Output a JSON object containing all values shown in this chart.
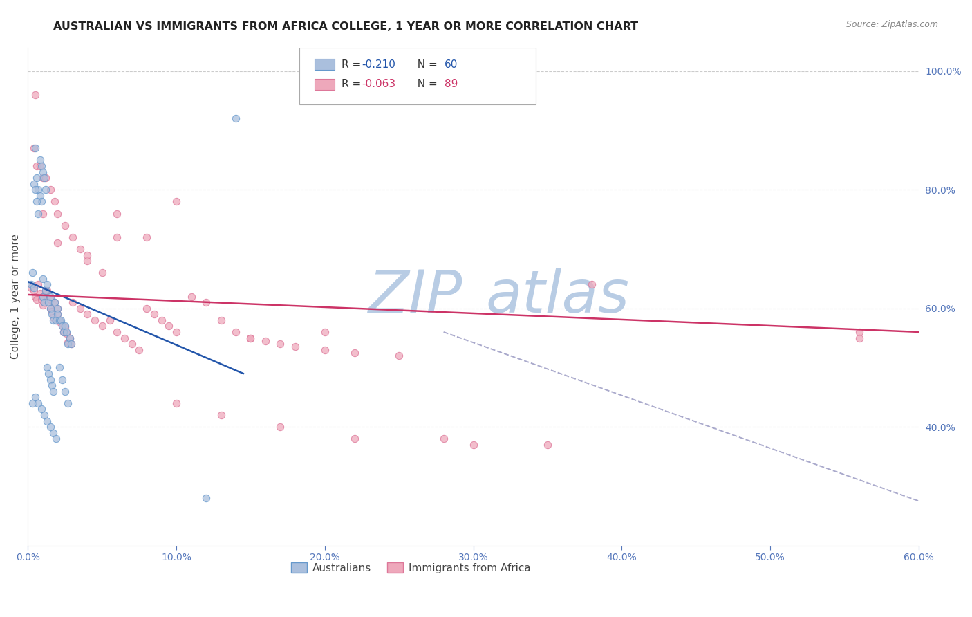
{
  "title": "AUSTRALIAN VS IMMIGRANTS FROM AFRICA COLLEGE, 1 YEAR OR MORE CORRELATION CHART",
  "source": "Source: ZipAtlas.com",
  "ylabel": "College, 1 year or more",
  "xlim": [
    0.0,
    0.6
  ],
  "ylim": [
    0.2,
    1.04
  ],
  "yticks": [
    0.4,
    0.6,
    0.8,
    1.0
  ],
  "ytick_labels": [
    "40.0%",
    "60.0%",
    "80.0%",
    "100.0%"
  ],
  "xticks": [
    0.0,
    0.1,
    0.2,
    0.3,
    0.4,
    0.5,
    0.6
  ],
  "xtick_labels": [
    "0.0%",
    "10.0%",
    "20.0%",
    "30.0%",
    "40.0%",
    "50.0%",
    "60.0%"
  ],
  "grid_color": "#cccccc",
  "background_color": "#ffffff",
  "watermark_zip_color": "#b8cce4",
  "watermark_atlas_color": "#b8cce4",
  "series": [
    {
      "label": "Australians",
      "R": -0.21,
      "N": 60,
      "edge_color": "#6699cc",
      "face_color": "#aabfdd",
      "marker_size": 55,
      "x": [
        0.002,
        0.004,
        0.005,
        0.006,
        0.007,
        0.008,
        0.009,
        0.01,
        0.01,
        0.011,
        0.012,
        0.013,
        0.014,
        0.015,
        0.015,
        0.016,
        0.017,
        0.018,
        0.019,
        0.02,
        0.02,
        0.021,
        0.022,
        0.023,
        0.024,
        0.025,
        0.026,
        0.027,
        0.028,
        0.029,
        0.003,
        0.004,
        0.005,
        0.006,
        0.007,
        0.008,
        0.009,
        0.01,
        0.011,
        0.012,
        0.013,
        0.014,
        0.015,
        0.016,
        0.017,
        0.003,
        0.005,
        0.007,
        0.009,
        0.011,
        0.013,
        0.015,
        0.017,
        0.019,
        0.021,
        0.023,
        0.025,
        0.027,
        0.12,
        0.14
      ],
      "y": [
        0.64,
        0.635,
        0.87,
        0.82,
        0.8,
        0.79,
        0.78,
        0.65,
        0.62,
        0.61,
        0.63,
        0.64,
        0.61,
        0.6,
        0.62,
        0.59,
        0.58,
        0.61,
        0.58,
        0.6,
        0.59,
        0.58,
        0.58,
        0.57,
        0.56,
        0.57,
        0.56,
        0.54,
        0.55,
        0.54,
        0.66,
        0.81,
        0.8,
        0.78,
        0.76,
        0.85,
        0.84,
        0.83,
        0.82,
        0.8,
        0.5,
        0.49,
        0.48,
        0.47,
        0.46,
        0.44,
        0.45,
        0.44,
        0.43,
        0.42,
        0.41,
        0.4,
        0.39,
        0.38,
        0.5,
        0.48,
        0.46,
        0.44,
        0.28,
        0.92
      ],
      "line_color": "#2255aa",
      "line_x": [
        0.0,
        0.145
      ],
      "line_y": [
        0.645,
        0.49
      ]
    },
    {
      "label": "Immigrants from Africa",
      "R": -0.063,
      "N": 89,
      "edge_color": "#dd7799",
      "face_color": "#eea8bb",
      "marker_size": 55,
      "x": [
        0.002,
        0.004,
        0.005,
        0.006,
        0.007,
        0.008,
        0.009,
        0.01,
        0.01,
        0.011,
        0.012,
        0.013,
        0.014,
        0.015,
        0.015,
        0.016,
        0.017,
        0.018,
        0.019,
        0.02,
        0.02,
        0.021,
        0.022,
        0.023,
        0.024,
        0.025,
        0.026,
        0.027,
        0.028,
        0.029,
        0.03,
        0.035,
        0.04,
        0.045,
        0.05,
        0.055,
        0.06,
        0.065,
        0.07,
        0.075,
        0.08,
        0.085,
        0.09,
        0.095,
        0.1,
        0.11,
        0.12,
        0.13,
        0.14,
        0.15,
        0.16,
        0.17,
        0.18,
        0.2,
        0.22,
        0.25,
        0.28,
        0.3,
        0.35,
        0.38,
        0.004,
        0.006,
        0.008,
        0.01,
        0.012,
        0.015,
        0.018,
        0.02,
        0.025,
        0.03,
        0.035,
        0.04,
        0.05,
        0.06,
        0.08,
        0.1,
        0.13,
        0.17,
        0.22,
        0.56,
        0.005,
        0.01,
        0.02,
        0.04,
        0.06,
        0.1,
        0.15,
        0.2,
        0.56
      ],
      "y": [
        0.635,
        0.63,
        0.62,
        0.615,
        0.64,
        0.625,
        0.615,
        0.605,
        0.62,
        0.61,
        0.63,
        0.63,
        0.61,
        0.6,
        0.615,
        0.595,
        0.585,
        0.61,
        0.58,
        0.6,
        0.59,
        0.58,
        0.575,
        0.57,
        0.56,
        0.568,
        0.558,
        0.542,
        0.55,
        0.54,
        0.61,
        0.6,
        0.59,
        0.58,
        0.57,
        0.58,
        0.56,
        0.55,
        0.54,
        0.53,
        0.6,
        0.59,
        0.58,
        0.57,
        0.56,
        0.62,
        0.61,
        0.58,
        0.56,
        0.55,
        0.545,
        0.54,
        0.535,
        0.53,
        0.525,
        0.52,
        0.38,
        0.37,
        0.37,
        0.64,
        0.87,
        0.84,
        0.84,
        0.82,
        0.82,
        0.8,
        0.78,
        0.76,
        0.74,
        0.72,
        0.7,
        0.68,
        0.66,
        0.72,
        0.72,
        0.44,
        0.42,
        0.4,
        0.38,
        0.56,
        0.96,
        0.76,
        0.71,
        0.69,
        0.76,
        0.78,
        0.55,
        0.56,
        0.55
      ],
      "line_color": "#cc3366",
      "line_x": [
        0.0,
        0.6
      ],
      "line_y": [
        0.623,
        0.56
      ]
    }
  ],
  "dashed_line": {
    "color": "#aaaacc",
    "x": [
      0.28,
      0.6
    ],
    "y": [
      0.56,
      0.275
    ]
  },
  "title_fontsize": 11.5,
  "axis_label_fontsize": 11,
  "tick_fontsize": 10,
  "tick_color": "#5577bb",
  "axis_color": "#5577bb",
  "legend_r_color_blue": "#2255aa",
  "legend_r_color_pink": "#cc3366",
  "legend_n_color_blue": "#2255aa",
  "legend_n_color_pink": "#cc3366"
}
